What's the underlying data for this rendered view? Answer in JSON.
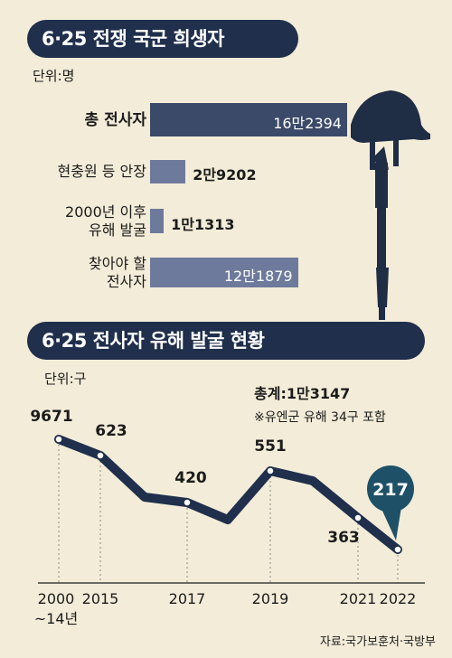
{
  "chart_data": [
    {
      "type": "bar",
      "title": "6·25 전쟁 국군 희생자",
      "unit": "단위:명",
      "orientation": "horizontal",
      "categories": [
        "총 전사자",
        "현충원 등 안장",
        "2000년 이후\n유해 발굴",
        "찾아야 할\n전사자"
      ],
      "values": [
        162394,
        29202,
        11313,
        121879
      ],
      "value_labels": [
        "16만2394",
        "2만9202",
        "1만1313",
        "12만1879"
      ],
      "colors": [
        "#3b4a68",
        "#6d7a9c",
        "#6d7a9c",
        "#6d7a9c"
      ]
    },
    {
      "type": "line",
      "title": "6·25 전사자 유해 발굴 현황",
      "unit": "단위:구",
      "x": [
        "2000~14년",
        "2015",
        "2016",
        "2017",
        "2018",
        "2019",
        "2020",
        "2021",
        "2022"
      ],
      "values": [
        9671,
        623,
        null,
        420,
        null,
        551,
        null,
        363,
        217
      ],
      "value_labels": [
        "9671",
        "623",
        "",
        "420",
        "",
        "551",
        "",
        "363",
        "217"
      ],
      "x_tick_labels": [
        "2000\n~14년",
        "2015",
        "",
        "2017",
        "",
        "2019",
        "",
        "2021",
        "2022"
      ],
      "total": "총계:1만3147",
      "note": "※유엔군 유해 34구 포함",
      "line_color": "#1f2f4c",
      "highlight_color": "#1e5168"
    }
  ],
  "source": "자료:국가보훈처·국방부"
}
